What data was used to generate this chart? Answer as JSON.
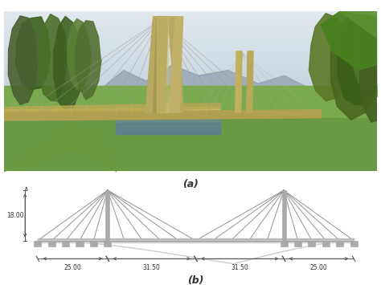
{
  "label_a": "(a)",
  "label_b": "(b)",
  "dim_label_18": "18.00",
  "dim_25_left": "25.00",
  "dim_31_left": "31.50",
  "dim_31_right": "31.50",
  "dim_25_right": "25.00",
  "bg_color": "#ffffff",
  "cable_color": "#888888",
  "tower_color": "#aaaaaa",
  "deck_color": "#bbbbbb",
  "text_color": "#333333",
  "dim_color": "#555555",
  "sky_color": "#c8d8e0",
  "sky_color2": "#dde8ee",
  "grass_color": "#7aaa55",
  "grass_dark": "#5a8840",
  "tree_dark": "#3a6025",
  "tree_mid": "#4a7030",
  "tree_light": "#5a8838",
  "mountain_color": "#8898a8",
  "water_color": "#7090a0",
  "bridge_deck_photo_color": "#c8b870",
  "railing_color": "#c8b055"
}
